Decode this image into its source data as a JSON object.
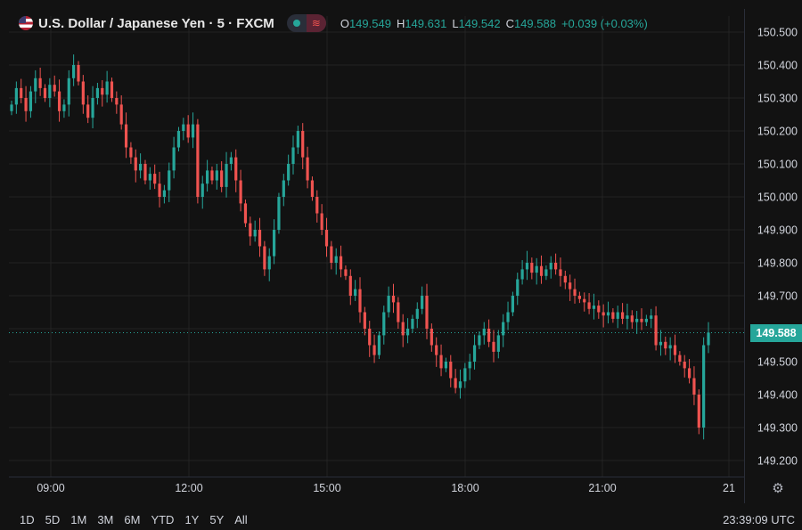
{
  "header": {
    "symbol_title": "U.S. Dollar / Japanese Yen · 5 · FXCM",
    "flag_icon": "us-flag-icon",
    "indicator_icons": [
      "status-dot-icon",
      "wave-icon"
    ],
    "ohlc": [
      {
        "key": "O",
        "value": "149.549"
      },
      {
        "key": "H",
        "value": "149.631"
      },
      {
        "key": "L",
        "value": "149.542"
      },
      {
        "key": "C",
        "value": "149.588"
      }
    ],
    "change": "+0.039 (+0.03%)"
  },
  "last_price_label": "149.588",
  "footer": {
    "ranges": [
      "1D",
      "5D",
      "1M",
      "3M",
      "6M",
      "YTD",
      "1Y",
      "5Y",
      "All"
    ],
    "clock": "23:39:09 UTC"
  },
  "colors": {
    "up": "#26a69a",
    "down": "#ef5350",
    "background": "#121212",
    "grid": "#232323"
  },
  "chart_data": {
    "type": "candlestick",
    "title": "U.S. Dollar / Japanese Yen · 5 · FXCM",
    "y_ticks": [
      "150.500",
      "150.400",
      "150.300",
      "150.200",
      "150.100",
      "150.000",
      "149.900",
      "149.800",
      "149.700",
      "149.600",
      "149.500",
      "149.400",
      "149.300",
      "149.200"
    ],
    "x_ticks": [
      "09:00",
      "12:00",
      "15:00",
      "18:00",
      "21:00",
      "21"
    ],
    "ylim": [
      149.19,
      150.52
    ],
    "last_price": 149.588,
    "closes": [
      150.28,
      150.33,
      150.3,
      150.26,
      150.32,
      150.36,
      150.33,
      150.3,
      150.34,
      150.32,
      150.26,
      150.28,
      150.36,
      150.4,
      150.35,
      150.28,
      150.24,
      150.3,
      150.33,
      150.31,
      150.35,
      150.3,
      150.28,
      150.22,
      150.15,
      150.12,
      150.08,
      150.1,
      150.05,
      150.07,
      150.04,
      150.0,
      150.02,
      150.08,
      150.15,
      150.2,
      150.22,
      150.18,
      150.22,
      150.0,
      150.04,
      150.08,
      150.05,
      150.08,
      150.03,
      150.1,
      150.12,
      150.05,
      149.98,
      149.92,
      149.88,
      149.9,
      149.85,
      149.78,
      149.82,
      149.9,
      150.0,
      150.05,
      150.1,
      150.15,
      150.2,
      150.12,
      150.05,
      150.0,
      149.95,
      149.9,
      149.85,
      149.8,
      149.82,
      149.78,
      149.76,
      149.7,
      149.72,
      149.65,
      149.6,
      149.55,
      149.52,
      149.58,
      149.65,
      149.7,
      149.68,
      149.62,
      149.58,
      149.6,
      149.63,
      149.66,
      149.7,
      149.6,
      149.55,
      149.52,
      149.48,
      149.5,
      149.45,
      149.42,
      149.44,
      149.48,
      149.5,
      149.55,
      149.58,
      149.6,
      149.56,
      149.53,
      149.58,
      149.62,
      149.65,
      149.7,
      149.75,
      149.78,
      149.8,
      149.77,
      149.79,
      149.76,
      149.78,
      149.8,
      149.78,
      149.76,
      149.74,
      149.72,
      149.7,
      149.69,
      149.68,
      149.66,
      149.67,
      149.65,
      149.64,
      149.65,
      149.63,
      149.65,
      149.63,
      149.64,
      149.62,
      149.63,
      149.62,
      149.63,
      149.64,
      149.55,
      149.56,
      149.54,
      149.55,
      149.52,
      149.5,
      149.48,
      149.45,
      149.4,
      149.3,
      149.55,
      149.588
    ]
  }
}
